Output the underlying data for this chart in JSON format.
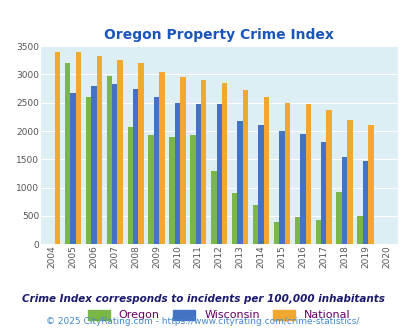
{
  "title": "Oregon Property Crime Index",
  "years": [
    "2004",
    "2005",
    "2006",
    "2007",
    "2008",
    "2009",
    "2010",
    "2011",
    "2012",
    "2013",
    "2014",
    "2015",
    "2016",
    "2017",
    "2018",
    "2019",
    "2020"
  ],
  "oregon": [
    0,
    3200,
    2600,
    2975,
    2075,
    1925,
    1900,
    1925,
    1300,
    900,
    700,
    400,
    475,
    425,
    925,
    500,
    0
  ],
  "wisconsin": [
    0,
    2675,
    2800,
    2825,
    2750,
    2600,
    2500,
    2475,
    2475,
    2175,
    2100,
    2000,
    1950,
    1800,
    1550,
    1475,
    0
  ],
  "national": [
    3400,
    3400,
    3325,
    3250,
    3200,
    3050,
    2950,
    2900,
    2850,
    2725,
    2600,
    2500,
    2475,
    2375,
    2200,
    2100,
    0
  ],
  "oregon_color": "#7ab648",
  "wisconsin_color": "#4472c4",
  "national_color": "#f0a830",
  "bg_color": "#ddeef5",
  "ylabel_max": 3500,
  "yticks": [
    0,
    500,
    1000,
    1500,
    2000,
    2500,
    3000,
    3500
  ],
  "subtitle": "Crime Index corresponds to incidents per 100,000 inhabitants",
  "footer": "© 2025 CityRating.com - https://www.cityrating.com/crime-statistics/",
  "title_color": "#1a56bb",
  "subtitle_color": "#1a1a6e",
  "footer_color": "#4488cc",
  "legend_label_color": "#660066"
}
